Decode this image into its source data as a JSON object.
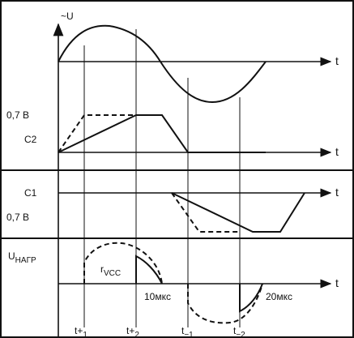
{
  "panel1": {
    "y_label": "~U",
    "t_label": "t"
  },
  "panel2": {
    "level_label": "0,7 В",
    "name_label": "C2",
    "t_label": "t"
  },
  "panel3": {
    "name_label": "C1",
    "level_label": "0,7 В",
    "t_label": "t"
  },
  "panel4": {
    "y_label_main": "U",
    "y_label_sub": "НАГР",
    "r_main": "r",
    "r_sub": "VCC",
    "t_label": "t",
    "time1": "10мкс",
    "time2": "20мкс"
  },
  "time_marks": [
    {
      "main": "t+",
      "sub": "1"
    },
    {
      "main": "t+",
      "sub": "2"
    },
    {
      "main": "t",
      "sub": "−1"
    },
    {
      "main": "t",
      "sub": "−2"
    }
  ]
}
